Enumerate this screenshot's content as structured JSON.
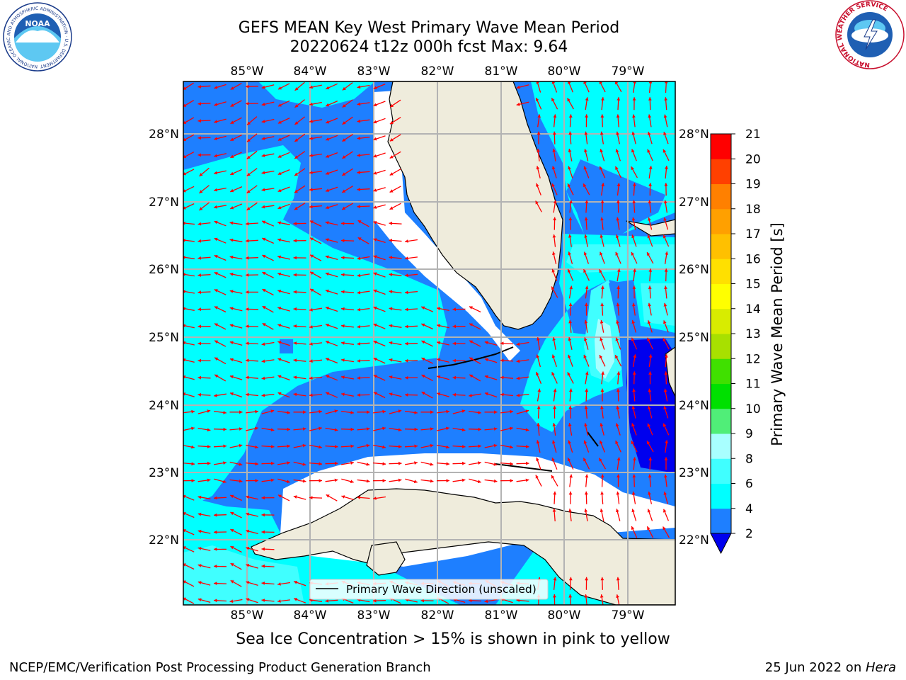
{
  "header": {
    "title_line1": "GEFS MEAN Key West Primary Wave Mean Period",
    "title_line2": "20220624 t12z 000h fcst   Max: 9.64"
  },
  "logos": {
    "noaa_text": "NOAA",
    "noaa_ring_text": "NATIONAL OCEANIC AND ATMOSPHERIC ADMINISTRATION · U.S. DEPARTMENT OF COMMERCE",
    "nws_ring_text": "NATIONAL WEATHER SERVICE"
  },
  "map": {
    "lon_labels": [
      "85°W",
      "84°W",
      "83°W",
      "82°W",
      "81°W",
      "80°W",
      "79°W"
    ],
    "lat_labels": [
      "28°N",
      "27°N",
      "26°N",
      "25°N",
      "24°N",
      "23°N",
      "22°N"
    ],
    "legend_label": "Primary Wave Direction (unscaled)",
    "colors": {
      "land": "#efecdc",
      "arrow": "#ff0000",
      "grid": "#b3b3b3",
      "period_2_4": "#1e7fff",
      "period_lt_2": "#0000ee",
      "period_4_6": "#00ffff",
      "period_6_8": "#40ffff",
      "period_8_9": "#a8ffff"
    }
  },
  "colorbar": {
    "label": "Primary Wave Mean Period [s]",
    "ticks": [
      "2",
      "4",
      "6",
      "8",
      "9",
      "10",
      "11",
      "12",
      "13",
      "14",
      "15",
      "16",
      "17",
      "18",
      "19",
      "20",
      "21"
    ],
    "colors": [
      "#1e7fff",
      "#00ffff",
      "#40ffff",
      "#a8ffff",
      "#50ee78",
      "#00e000",
      "#40e000",
      "#a8e000",
      "#d8ec00",
      "#ffff00",
      "#ffe000",
      "#ffc000",
      "#ffa000",
      "#ff8000",
      "#ff4000",
      "#ff0000"
    ],
    "under_color": "#0000ee"
  },
  "subtitle": "Sea Ice Concentration > 15% is shown in pink to yellow",
  "footer": {
    "left": "NCEP/EMC/Verification Post Processing Product Generation Branch",
    "right_prefix": "25 Jun 2022 on ",
    "right_host": "Hera"
  }
}
